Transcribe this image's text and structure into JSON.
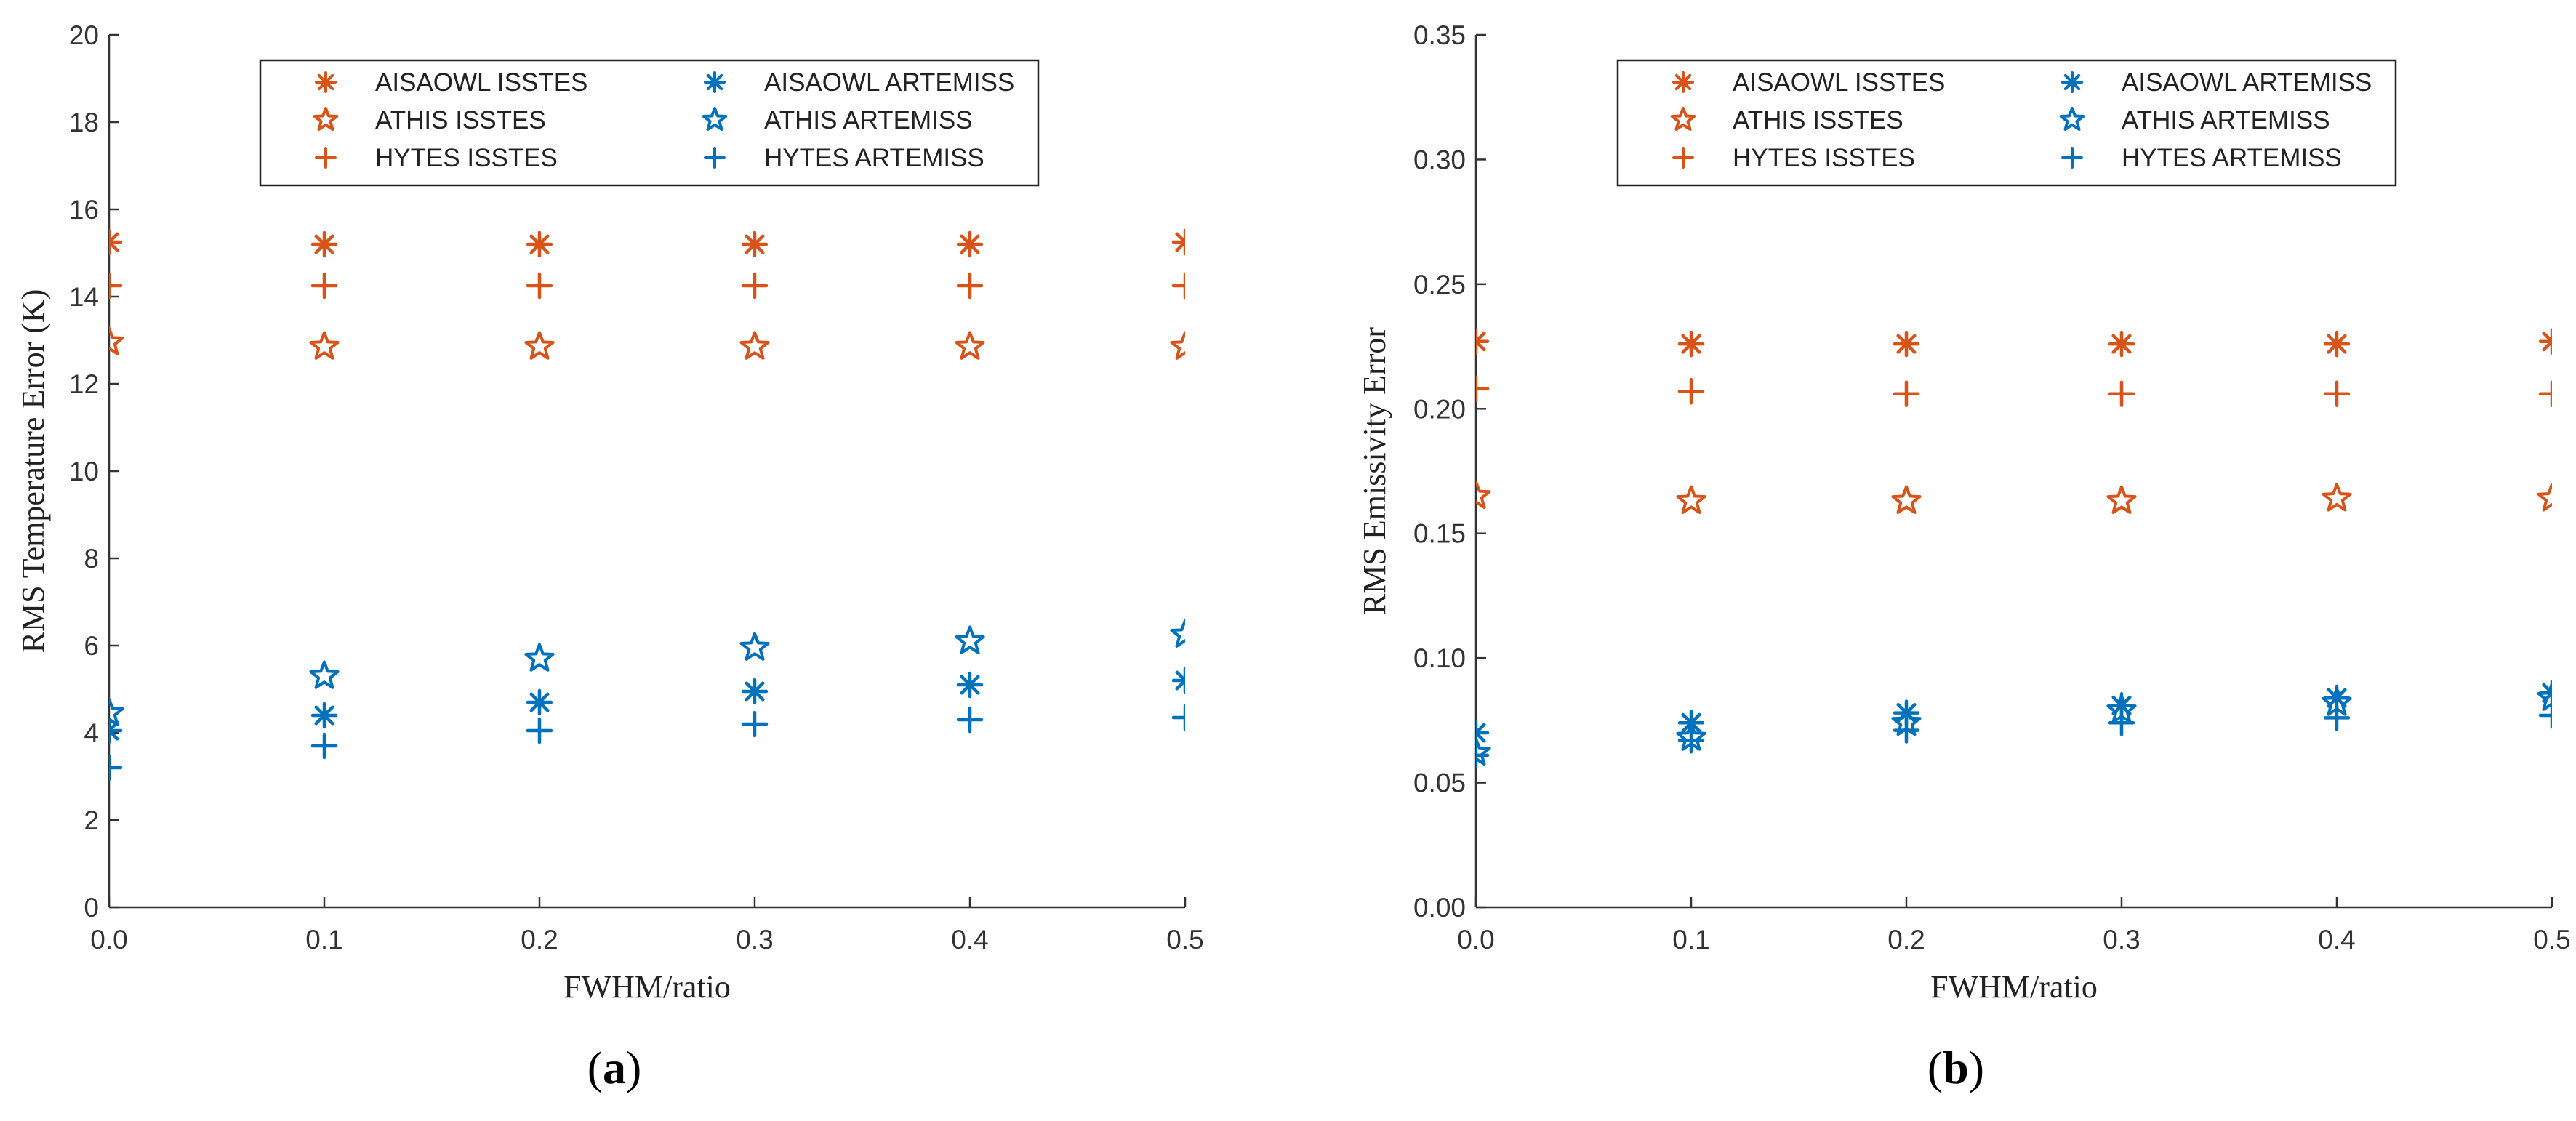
{
  "colors": {
    "ISSTES": "#D95319",
    "ARTEMISS": "#0072BD",
    "axis": "#333333"
  },
  "chart_data": [
    {
      "type": "scatter",
      "caption": "a",
      "xlabel": "FWHM/ratio",
      "ylabel": "RMS Temperature Error (K)",
      "xlim": [
        0,
        0.5
      ],
      "ylim": [
        0,
        20
      ],
      "xticks": [
        "0.0",
        "0.1",
        "0.2",
        "0.3",
        "0.4",
        "0.5"
      ],
      "yticks": [
        "0",
        "2",
        "4",
        "6",
        "8",
        "10",
        "12",
        "14",
        "16",
        "18",
        "20"
      ],
      "x": [
        0.0,
        0.1,
        0.2,
        0.3,
        0.4,
        0.5
      ],
      "legend_position": "top",
      "series": [
        {
          "name": "AISAOWL ISSTES",
          "marker": "asterisk",
          "group": "ISSTES",
          "values": [
            15.25,
            15.2,
            15.2,
            15.2,
            15.2,
            15.25
          ]
        },
        {
          "name": "ATHIS ISSTES",
          "marker": "star",
          "group": "ISSTES",
          "values": [
            12.95,
            12.85,
            12.85,
            12.85,
            12.85,
            12.85
          ]
        },
        {
          "name": "HYTES ISSTES",
          "marker": "plus",
          "group": "ISSTES",
          "values": [
            14.25,
            14.25,
            14.25,
            14.25,
            14.25,
            14.25
          ]
        },
        {
          "name": "AISAOWL ARTEMISS",
          "marker": "asterisk",
          "group": "ARTEMISS",
          "values": [
            4.05,
            4.4,
            4.7,
            4.95,
            5.1,
            5.2
          ]
        },
        {
          "name": "ATHIS ARTEMISS",
          "marker": "star",
          "group": "ARTEMISS",
          "values": [
            4.45,
            5.3,
            5.7,
            5.95,
            6.1,
            6.25
          ]
        },
        {
          "name": "HYTES ARTEMISS",
          "marker": "plus",
          "group": "ARTEMISS",
          "values": [
            3.2,
            3.7,
            4.05,
            4.2,
            4.3,
            4.35
          ]
        }
      ]
    },
    {
      "type": "scatter",
      "caption": "b",
      "xlabel": "FWHM/ratio",
      "ylabel": "RMS Emissivity Error",
      "xlim": [
        0,
        0.5
      ],
      "ylim": [
        0,
        0.35
      ],
      "xticks": [
        "0.0",
        "0.1",
        "0.2",
        "0.3",
        "0.4",
        "0.5"
      ],
      "yticks": [
        "0.00",
        "0.05",
        "0.10",
        "0.15",
        "0.20",
        "0.25",
        "0.30",
        "0.35"
      ],
      "x": [
        0.0,
        0.1,
        0.2,
        0.3,
        0.4,
        0.5
      ],
      "legend_position": "top",
      "series": [
        {
          "name": "AISAOWL ISSTES",
          "marker": "asterisk",
          "group": "ISSTES",
          "values": [
            0.227,
            0.226,
            0.226,
            0.226,
            0.226,
            0.227
          ]
        },
        {
          "name": "ATHIS ISSTES",
          "marker": "star",
          "group": "ISSTES",
          "values": [
            0.165,
            0.163,
            0.163,
            0.163,
            0.164,
            0.164
          ]
        },
        {
          "name": "HYTES ISSTES",
          "marker": "plus",
          "group": "ISSTES",
          "values": [
            0.208,
            0.207,
            0.206,
            0.206,
            0.206,
            0.206
          ]
        },
        {
          "name": "AISAOWL ARTEMISS",
          "marker": "asterisk",
          "group": "ARTEMISS",
          "values": [
            0.07,
            0.074,
            0.078,
            0.081,
            0.084,
            0.086
          ]
        },
        {
          "name": "ATHIS ARTEMISS",
          "marker": "star",
          "group": "ARTEMISS",
          "values": [
            0.062,
            0.068,
            0.074,
            0.079,
            0.082,
            0.084
          ]
        },
        {
          "name": "HYTES ARTEMISS",
          "marker": "plus",
          "group": "ARTEMISS",
          "values": [
            0.061,
            0.067,
            0.071,
            0.074,
            0.076,
            0.077
          ]
        }
      ]
    }
  ]
}
